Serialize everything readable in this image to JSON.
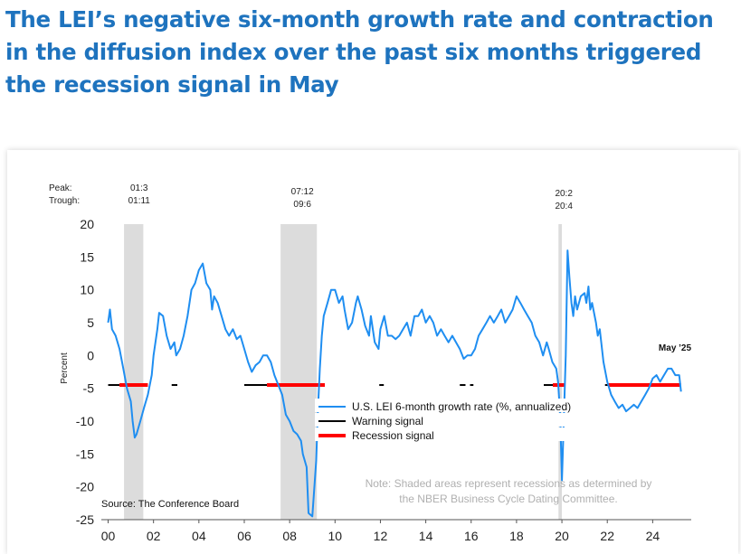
{
  "headline": "The LEI’s negative six-month growth rate and contraction in the diffusion index over the past six months triggered the recession signal in May",
  "chart_data": {
    "type": "line",
    "title": "",
    "ylabel": "Percent",
    "xlabel": "",
    "ylim": [
      -25,
      20
    ],
    "yticks": [
      20,
      15,
      10,
      5,
      0,
      -5,
      -10,
      -15,
      -20,
      -25
    ],
    "xlim": [
      1999.7,
      2025.7
    ],
    "xticks": [
      {
        "value": 2000,
        "label": "00"
      },
      {
        "value": 2002,
        "label": "02"
      },
      {
        "value": 2004,
        "label": "04"
      },
      {
        "value": 2006,
        "label": "06"
      },
      {
        "value": 2008,
        "label": "08"
      },
      {
        "value": 2010,
        "label": "10"
      },
      {
        "value": 2012,
        "label": "12"
      },
      {
        "value": 2014,
        "label": "14"
      },
      {
        "value": 2016,
        "label": "16"
      },
      {
        "value": 2018,
        "label": "18"
      },
      {
        "value": 2020,
        "label": "20"
      },
      {
        "value": 2022,
        "label": "22"
      },
      {
        "value": 2024,
        "label": "24"
      }
    ],
    "peak_label": "Peak:",
    "trough_label": "Trough:",
    "recessions": [
      {
        "start": 2000.7,
        "end": 2001.55,
        "peak": "01:3",
        "trough": "01:11"
      },
      {
        "start": 2007.6,
        "end": 2009.2,
        "peak": "07:12",
        "trough": "09:6"
      },
      {
        "start": 2019.85,
        "end": 2020.0,
        "peak": "20:2",
        "trough": "20:4"
      }
    ],
    "series": [
      {
        "name": "U.S. LEI 6-month growth rate (%, annualized)",
        "color": "#1f8ef1",
        "points": [
          [
            2000.0,
            5
          ],
          [
            2000.08,
            7
          ],
          [
            2000.17,
            4
          ],
          [
            2000.33,
            3
          ],
          [
            2000.5,
            1
          ],
          [
            2000.67,
            -2
          ],
          [
            2000.83,
            -5
          ],
          [
            2001.0,
            -7
          ],
          [
            2001.08,
            -10
          ],
          [
            2001.17,
            -12.5
          ],
          [
            2001.25,
            -12
          ],
          [
            2001.42,
            -10
          ],
          [
            2001.58,
            -8
          ],
          [
            2001.75,
            -6
          ],
          [
            2001.92,
            -3
          ],
          [
            2002.0,
            0
          ],
          [
            2002.17,
            4
          ],
          [
            2002.25,
            6.5
          ],
          [
            2002.42,
            6
          ],
          [
            2002.58,
            3
          ],
          [
            2002.75,
            1
          ],
          [
            2002.92,
            2
          ],
          [
            2003.0,
            0
          ],
          [
            2003.17,
            1
          ],
          [
            2003.33,
            3
          ],
          [
            2003.5,
            6
          ],
          [
            2003.67,
            10
          ],
          [
            2003.83,
            11
          ],
          [
            2004.0,
            13
          ],
          [
            2004.17,
            14
          ],
          [
            2004.33,
            11
          ],
          [
            2004.5,
            10
          ],
          [
            2004.58,
            7
          ],
          [
            2004.67,
            9
          ],
          [
            2004.83,
            8
          ],
          [
            2005.0,
            6
          ],
          [
            2005.17,
            4
          ],
          [
            2005.33,
            3
          ],
          [
            2005.5,
            4
          ],
          [
            2005.67,
            2.5
          ],
          [
            2005.83,
            3
          ],
          [
            2006.0,
            1
          ],
          [
            2006.17,
            -1
          ],
          [
            2006.33,
            -2.5
          ],
          [
            2006.5,
            -1.5
          ],
          [
            2006.67,
            -1
          ],
          [
            2006.83,
            0
          ],
          [
            2007.0,
            0
          ],
          [
            2007.17,
            -1
          ],
          [
            2007.33,
            -3
          ],
          [
            2007.5,
            -4.5
          ],
          [
            2007.67,
            -6
          ],
          [
            2007.83,
            -9
          ],
          [
            2008.0,
            -10
          ],
          [
            2008.17,
            -11.5
          ],
          [
            2008.33,
            -12
          ],
          [
            2008.5,
            -13
          ],
          [
            2008.58,
            -15
          ],
          [
            2008.75,
            -17
          ],
          [
            2008.83,
            -24
          ],
          [
            2009.0,
            -24.5
          ],
          [
            2009.17,
            -16
          ],
          [
            2009.25,
            -8
          ],
          [
            2009.33,
            -2
          ],
          [
            2009.42,
            3
          ],
          [
            2009.5,
            6
          ],
          [
            2009.67,
            8
          ],
          [
            2009.83,
            10
          ],
          [
            2010.0,
            10
          ],
          [
            2010.17,
            8
          ],
          [
            2010.33,
            9
          ],
          [
            2010.42,
            7
          ],
          [
            2010.58,
            4
          ],
          [
            2010.75,
            5
          ],
          [
            2010.92,
            8
          ],
          [
            2011.0,
            9
          ],
          [
            2011.17,
            7
          ],
          [
            2011.33,
            4.5
          ],
          [
            2011.5,
            3
          ],
          [
            2011.58,
            6
          ],
          [
            2011.75,
            2
          ],
          [
            2011.92,
            1
          ],
          [
            2012.0,
            4
          ],
          [
            2012.17,
            6
          ],
          [
            2012.33,
            3
          ],
          [
            2012.5,
            3
          ],
          [
            2012.67,
            2.5
          ],
          [
            2012.83,
            3
          ],
          [
            2013.0,
            4
          ],
          [
            2013.17,
            5
          ],
          [
            2013.33,
            3
          ],
          [
            2013.5,
            6
          ],
          [
            2013.67,
            6
          ],
          [
            2013.83,
            7
          ],
          [
            2014.0,
            5
          ],
          [
            2014.17,
            6
          ],
          [
            2014.33,
            5
          ],
          [
            2014.5,
            3
          ],
          [
            2014.67,
            4
          ],
          [
            2014.83,
            3
          ],
          [
            2015.0,
            2
          ],
          [
            2015.17,
            3
          ],
          [
            2015.33,
            2
          ],
          [
            2015.5,
            1
          ],
          [
            2015.67,
            -0.5
          ],
          [
            2015.83,
            0
          ],
          [
            2016.0,
            0
          ],
          [
            2016.17,
            1
          ],
          [
            2016.33,
            3
          ],
          [
            2016.5,
            4
          ],
          [
            2016.67,
            5
          ],
          [
            2016.83,
            6
          ],
          [
            2017.0,
            5
          ],
          [
            2017.17,
            6
          ],
          [
            2017.33,
            7
          ],
          [
            2017.5,
            5
          ],
          [
            2017.67,
            6
          ],
          [
            2017.83,
            7
          ],
          [
            2018.0,
            9
          ],
          [
            2018.17,
            8
          ],
          [
            2018.33,
            7
          ],
          [
            2018.5,
            6
          ],
          [
            2018.67,
            5
          ],
          [
            2018.83,
            3
          ],
          [
            2019.0,
            2
          ],
          [
            2019.17,
            0
          ],
          [
            2019.33,
            2
          ],
          [
            2019.42,
            1
          ],
          [
            2019.58,
            -1
          ],
          [
            2019.75,
            -2
          ],
          [
            2019.83,
            -4
          ],
          [
            2019.92,
            -9
          ],
          [
            2020.0,
            -19
          ],
          [
            2020.08,
            -10
          ],
          [
            2020.17,
            0
          ],
          [
            2020.25,
            16
          ],
          [
            2020.33,
            12
          ],
          [
            2020.42,
            8
          ],
          [
            2020.5,
            6
          ],
          [
            2020.58,
            9
          ],
          [
            2020.67,
            7
          ],
          [
            2020.83,
            9
          ],
          [
            2021.0,
            9.5
          ],
          [
            2021.08,
            8
          ],
          [
            2021.17,
            10.5
          ],
          [
            2021.25,
            7
          ],
          [
            2021.33,
            8
          ],
          [
            2021.5,
            5
          ],
          [
            2021.58,
            3
          ],
          [
            2021.67,
            4
          ],
          [
            2021.83,
            -1
          ],
          [
            2022.0,
            -4
          ],
          [
            2022.17,
            -6
          ],
          [
            2022.33,
            -7
          ],
          [
            2022.5,
            -8
          ],
          [
            2022.67,
            -7.5
          ],
          [
            2022.83,
            -8.5
          ],
          [
            2023.0,
            -8
          ],
          [
            2023.17,
            -7.5
          ],
          [
            2023.33,
            -8
          ],
          [
            2023.5,
            -7
          ],
          [
            2023.67,
            -6
          ],
          [
            2023.83,
            -5
          ],
          [
            2024.0,
            -3.5
          ],
          [
            2024.17,
            -3
          ],
          [
            2024.33,
            -4
          ],
          [
            2024.5,
            -3
          ],
          [
            2024.67,
            -2
          ],
          [
            2024.83,
            -2
          ],
          [
            2025.0,
            -3
          ],
          [
            2025.17,
            -3
          ],
          [
            2025.25,
            -5.5
          ]
        ]
      },
      {
        "name": "Warning signal",
        "color": "#000000",
        "level": -4.5,
        "segments": [
          [
            2000.0,
            2000.5
          ],
          [
            2002.8,
            2003.05
          ],
          [
            2006.0,
            2007.0
          ],
          [
            2011.95,
            2012.15
          ],
          [
            2015.5,
            2015.75
          ],
          [
            2015.95,
            2016.1
          ],
          [
            2019.2,
            2019.6
          ],
          [
            2021.9,
            2022.05
          ]
        ]
      },
      {
        "name": "Recession signal",
        "color": "#ff0000",
        "level": -4.5,
        "segments": [
          [
            2000.5,
            2001.75
          ],
          [
            2007.0,
            2009.55
          ],
          [
            2019.6,
            2020.1
          ],
          [
            2022.05,
            2025.25
          ]
        ]
      }
    ],
    "annotation": "May ’25",
    "note_line1": "Note: Shaded areas represent recessions as determined by",
    "note_line2": "the NBER Business Cycle Dating Committee.",
    "source": "Source: The Conference Board"
  }
}
